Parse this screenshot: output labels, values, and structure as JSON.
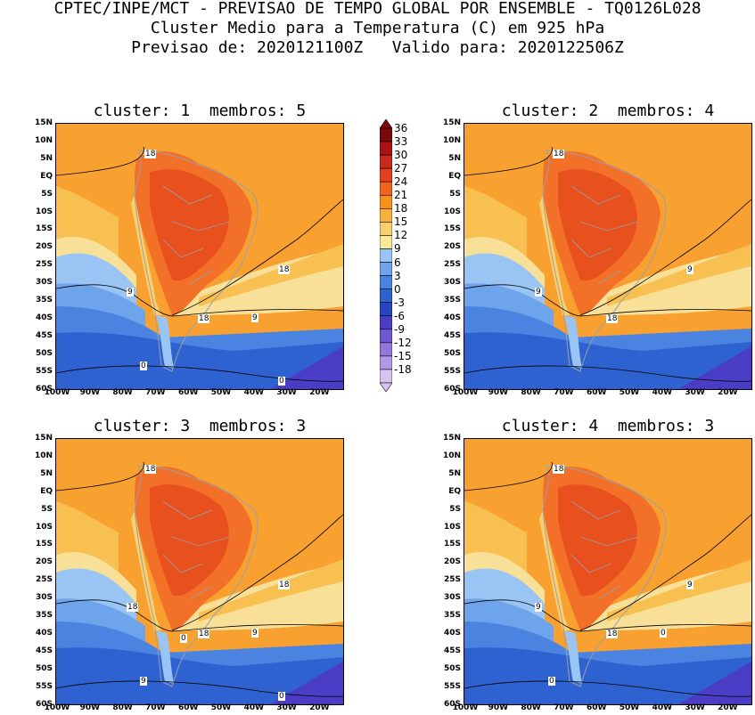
{
  "header": {
    "line1": "CPTEC/INPE/MCT - PREVISAO DE TEMPO GLOBAL POR ENSEMBLE - TQ0126L028",
    "line2": "Cluster Medio para a Temperatura (C) em 925 hPa",
    "line3": "Previsao de: 2020121100Z   Valido para: 2020122506Z"
  },
  "panels": [
    {
      "title": "cluster: 1  membros: 5",
      "labels": [
        "18",
        "18",
        "18",
        "9",
        "9",
        "0",
        "0"
      ]
    },
    {
      "title": "cluster: 2  membros: 4",
      "labels": [
        "18",
        "18",
        "9",
        "9"
      ]
    },
    {
      "title": "cluster: 3  membros: 3",
      "labels": [
        "18",
        "18",
        "18",
        "18",
        "9",
        "9",
        "0",
        "0"
      ]
    },
    {
      "title": "cluster: 4  membros: 3",
      "labels": [
        "18",
        "18",
        "9",
        "9",
        "0",
        "0"
      ]
    }
  ],
  "axes": {
    "lat_labels": [
      "15N",
      "10N",
      "5N",
      "EQ",
      "5S",
      "10S",
      "15S",
      "20S",
      "25S",
      "30S",
      "35S",
      "40S",
      "45S",
      "50S",
      "55S",
      "60S"
    ],
    "lon_labels": [
      "100W",
      "90W",
      "80W",
      "70W",
      "60W",
      "50W",
      "40W",
      "30W",
      "20W"
    ]
  },
  "colorbar": {
    "labels": [
      "36",
      "33",
      "30",
      "27",
      "24",
      "21",
      "18",
      "15",
      "12",
      "9",
      "6",
      "3",
      "0",
      "-3",
      "-6",
      "-9",
      "-12",
      "-15",
      "-18"
    ],
    "colors": [
      "#7a0a0a",
      "#a81414",
      "#c82a1e",
      "#e2401e",
      "#f2641e",
      "#f8901e",
      "#f8b040",
      "#f8d070",
      "#f8e898",
      "#9ac4f4",
      "#6ea4ec",
      "#4a84e0",
      "#2e62d0",
      "#2846c0",
      "#4a3cc4",
      "#7058d0",
      "#9078dc",
      "#b09ae6",
      "#d4c4f0"
    ]
  }
}
